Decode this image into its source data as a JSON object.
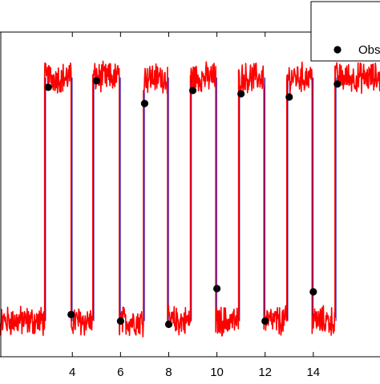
{
  "chart_data": {
    "type": "line",
    "title": "",
    "xlabel": "",
    "ylabel": "",
    "xlim": [
      0,
      17.3
    ],
    "ylim": [
      0,
      1
    ],
    "x_ticks": [
      4,
      6,
      8,
      10,
      12,
      14
    ],
    "x_tick_labels": [
      "4",
      "6",
      "8",
      "10",
      "12",
      "14"
    ],
    "grid": false,
    "legend": {
      "placement": "top-right",
      "entries": [
        "Obs"
      ]
    },
    "colors": {
      "signal": "#ff0000",
      "observations": "#000000",
      "transition_accent": "#0000cc"
    },
    "series": [
      {
        "name": "",
        "type": "line",
        "high_level": 0.86,
        "low_level": 0.11,
        "noise_amplitude": 0.04,
        "transitions": [
          {
            "x": 2.85,
            "to": "high"
          },
          {
            "x": 3.95,
            "to": "low"
          },
          {
            "x": 4.85,
            "to": "high"
          },
          {
            "x": 5.95,
            "to": "low"
          },
          {
            "x": 6.95,
            "to": "high"
          },
          {
            "x": 7.95,
            "to": "low"
          },
          {
            "x": 8.9,
            "to": "high"
          },
          {
            "x": 9.95,
            "to": "low"
          },
          {
            "x": 10.9,
            "to": "high"
          },
          {
            "x": 11.95,
            "to": "low"
          },
          {
            "x": 12.9,
            "to": "high"
          },
          {
            "x": 13.95,
            "to": "low"
          },
          {
            "x": 14.9,
            "to": "high"
          }
        ]
      },
      {
        "name": "Obs",
        "type": "scatter",
        "points": [
          {
            "x": 3.0,
            "y": 0.83
          },
          {
            "x": 3.95,
            "y": 0.13
          },
          {
            "x": 5.0,
            "y": 0.85
          },
          {
            "x": 6.0,
            "y": 0.11
          },
          {
            "x": 7.0,
            "y": 0.78
          },
          {
            "x": 8.0,
            "y": 0.1
          },
          {
            "x": 9.0,
            "y": 0.82
          },
          {
            "x": 10.0,
            "y": 0.21
          },
          {
            "x": 11.0,
            "y": 0.81
          },
          {
            "x": 12.0,
            "y": 0.11
          },
          {
            "x": 13.0,
            "y": 0.8
          },
          {
            "x": 14.0,
            "y": 0.2
          },
          {
            "x": 15.0,
            "y": 0.84
          }
        ]
      }
    ]
  }
}
